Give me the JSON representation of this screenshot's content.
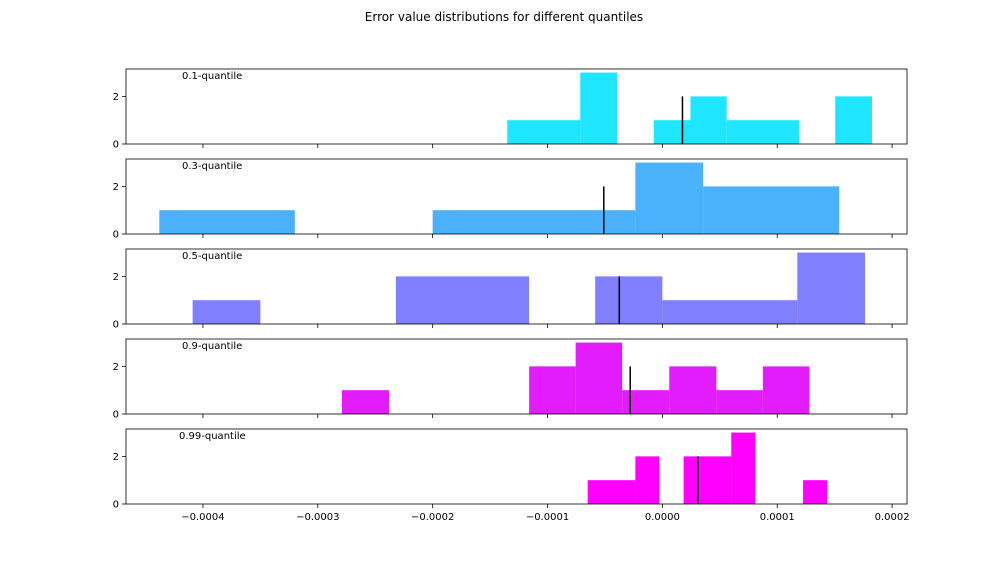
{
  "figure": {
    "title": "Error value distributions for different quantiles"
  },
  "chart_data": {
    "type": "bar",
    "subtype": "histogram-stack",
    "title": "Error value distributions for different quantiles",
    "xlim": [
      -0.000467,
      0.000213
    ],
    "ylim": [
      0,
      3.15
    ],
    "x_ticks": [
      -0.0004,
      -0.0003,
      -0.0002,
      -0.0001,
      0.0,
      0.0001,
      0.0002
    ],
    "x_tick_labels": [
      "−0.0004",
      "−0.0003",
      "−0.0002",
      "−0.0001",
      "0.0000",
      "0.0001",
      "0.0002"
    ],
    "y_ticks": [
      0,
      2
    ],
    "y_tick_labels": [
      "0",
      "2"
    ],
    "grid": false,
    "legend": "none",
    "marker_color": "#000000",
    "panels": [
      {
        "label": "0.1-quantile",
        "color": "#1de6fe",
        "marker": 1.75e-05,
        "bins": [
          {
            "x0": -0.000135,
            "x1": -7.15e-05,
            "count": 1
          },
          {
            "x0": -7.15e-05,
            "x1": -3.95e-05,
            "count": 3
          },
          {
            "x0": -7.5e-06,
            "x1": 2.45e-05,
            "count": 1
          },
          {
            "x0": 2.45e-05,
            "x1": 5.6e-05,
            "count": 2
          },
          {
            "x0": 5.6e-05,
            "x1": 0.000119,
            "count": 1
          },
          {
            "x0": 0.0001505,
            "x1": 0.0001825,
            "count": 2
          }
        ]
      },
      {
        "label": "0.3-quantile",
        "color": "#4cb1fc",
        "marker": -5.1e-05,
        "bins": [
          {
            "x0": -0.000438,
            "x1": -0.00032,
            "count": 1
          },
          {
            "x0": -0.0002,
            "x1": -2.35e-05,
            "count": 1
          },
          {
            "x0": -2.35e-05,
            "x1": 3.55e-05,
            "count": 3
          },
          {
            "x0": 3.55e-05,
            "x1": 0.000154,
            "count": 2
          }
        ]
      },
      {
        "label": "0.5-quantile",
        "color": "#807ffe",
        "marker": -3.75e-05,
        "bins": [
          {
            "x0": -0.000409,
            "x1": -0.00035,
            "count": 1
          },
          {
            "x0": -0.000232,
            "x1": -0.000116,
            "count": 2
          },
          {
            "x0": -5.85e-05,
            "x1": 0.0,
            "count": 2
          },
          {
            "x0": 0.0,
            "x1": 0.0001175,
            "count": 1
          },
          {
            "x0": 0.0001175,
            "x1": 0.0001765,
            "count": 3
          }
        ]
      },
      {
        "label": "0.9-quantile",
        "color": "#e31cfd",
        "marker": -2.8e-05,
        "bins": [
          {
            "x0": -0.000279,
            "x1": -0.000238,
            "count": 1
          },
          {
            "x0": -0.000116,
            "x1": -7.55e-05,
            "count": 2
          },
          {
            "x0": -7.55e-05,
            "x1": -3.5e-05,
            "count": 3
          },
          {
            "x0": -3.5e-05,
            "x1": 6e-06,
            "count": 1
          },
          {
            "x0": 6e-06,
            "x1": 4.7e-05,
            "count": 2
          },
          {
            "x0": 4.7e-05,
            "x1": 8.75e-05,
            "count": 1
          },
          {
            "x0": 8.75e-05,
            "x1": 0.000128,
            "count": 2
          }
        ]
      },
      {
        "label": "0.99-quantile",
        "color": "#ff00fe",
        "marker": 3.1e-05,
        "bins": [
          {
            "x0": -6.5e-05,
            "x1": -2.35e-05,
            "count": 1
          },
          {
            "x0": -2.35e-05,
            "x1": -2.5e-06,
            "count": 2
          },
          {
            "x0": 1.85e-05,
            "x1": 6e-05,
            "count": 2
          },
          {
            "x0": 6e-05,
            "x1": 8.1e-05,
            "count": 3
          },
          {
            "x0": 0.0001225,
            "x1": 0.0001435,
            "count": 1
          }
        ]
      }
    ]
  }
}
